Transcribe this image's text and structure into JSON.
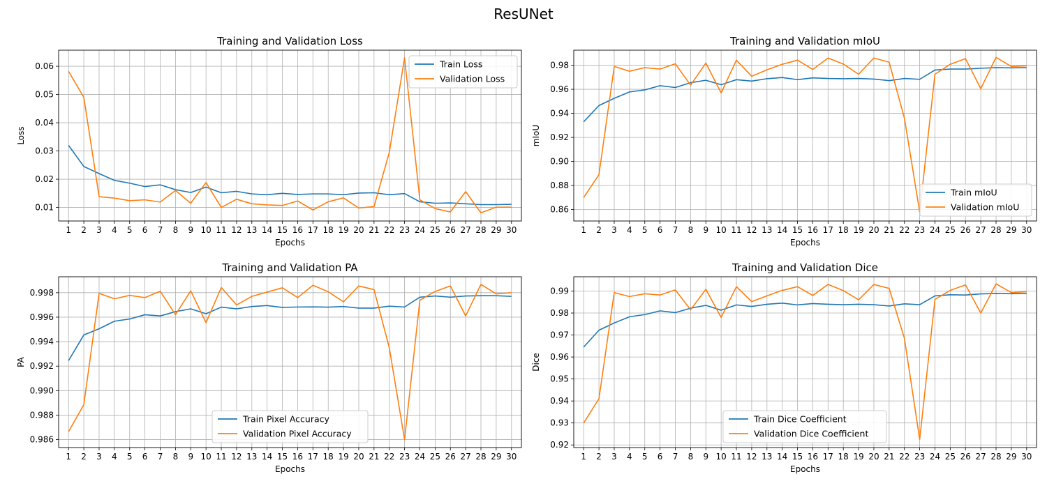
{
  "figure": {
    "title": "ResUNet"
  },
  "chart_data": [
    {
      "type": "line",
      "title": "Training and Validation Loss",
      "xlabel": "Epochs",
      "ylabel": "Loss",
      "x": [
        1,
        2,
        3,
        4,
        5,
        6,
        7,
        8,
        9,
        10,
        11,
        12,
        13,
        14,
        15,
        16,
        17,
        18,
        19,
        20,
        21,
        22,
        23,
        24,
        25,
        26,
        27,
        28,
        29,
        30
      ],
      "xlim": [
        0.35,
        30.65
      ],
      "ylim": [
        0.0052,
        0.0657
      ],
      "yticks": [
        0.01,
        0.02,
        0.03,
        0.04,
        0.05,
        0.06
      ],
      "ytick_labels": [
        "0.01",
        "0.02",
        "0.03",
        "0.04",
        "0.05",
        "0.06"
      ],
      "grid": true,
      "legend": "top-right",
      "series": [
        {
          "name": "Train Loss",
          "color": "#1f77b4",
          "values": [
            0.032,
            0.0245,
            0.022,
            0.0196,
            0.0186,
            0.0174,
            0.018,
            0.0163,
            0.0153,
            0.0172,
            0.0152,
            0.0157,
            0.0148,
            0.0145,
            0.015,
            0.0146,
            0.0148,
            0.0148,
            0.0145,
            0.0151,
            0.0152,
            0.0145,
            0.0149,
            0.012,
            0.0115,
            0.0116,
            0.0113,
            0.011,
            0.011,
            0.0111
          ]
        },
        {
          "name": "Validation Loss",
          "color": "#ff7f0e",
          "values": [
            0.0582,
            0.049,
            0.0138,
            0.0133,
            0.0124,
            0.0127,
            0.0119,
            0.016,
            0.0115,
            0.0188,
            0.01,
            0.0129,
            0.0113,
            0.0109,
            0.0107,
            0.0123,
            0.0091,
            0.012,
            0.0134,
            0.0098,
            0.0103,
            0.0295,
            0.063,
            0.0127,
            0.0096,
            0.0084,
            0.0156,
            0.0081,
            0.0101,
            0.0101
          ]
        }
      ]
    },
    {
      "type": "line",
      "title": "Training and Validation mIoU",
      "xlabel": "Epochs",
      "ylabel": "mIoU",
      "x": [
        1,
        2,
        3,
        4,
        5,
        6,
        7,
        8,
        9,
        10,
        11,
        12,
        13,
        14,
        15,
        16,
        17,
        18,
        19,
        20,
        21,
        22,
        23,
        24,
        25,
        26,
        27,
        28,
        29,
        30
      ],
      "xlim": [
        0.35,
        30.65
      ],
      "ylim": [
        0.8505,
        0.9925
      ],
      "yticks": [
        0.86,
        0.88,
        0.9,
        0.92,
        0.94,
        0.96,
        0.98
      ],
      "ytick_labels": [
        "0.86",
        "0.88",
        "0.90",
        "0.92",
        "0.94",
        "0.96",
        "0.98"
      ],
      "grid": true,
      "legend": "bottom-right",
      "series": [
        {
          "name": "Train mIoU",
          "color": "#1f77b4",
          "values": [
            0.933,
            0.9465,
            0.9525,
            0.9578,
            0.9595,
            0.963,
            0.9615,
            0.9655,
            0.9675,
            0.9638,
            0.968,
            0.9668,
            0.9688,
            0.9698,
            0.968,
            0.9695,
            0.969,
            0.9688,
            0.969,
            0.9685,
            0.9672,
            0.969,
            0.9683,
            0.976,
            0.9768,
            0.9768,
            0.9775,
            0.978,
            0.9778,
            0.978
          ]
        },
        {
          "name": "Validation mIoU",
          "color": "#ff7f0e",
          "values": [
            0.87,
            0.889,
            0.979,
            0.975,
            0.978,
            0.9768,
            0.9812,
            0.9635,
            0.9818,
            0.957,
            0.9842,
            0.9708,
            0.9762,
            0.9808,
            0.9842,
            0.9765,
            0.986,
            0.981,
            0.9725,
            0.986,
            0.9825,
            0.936,
            0.858,
            0.9725,
            0.9808,
            0.9855,
            0.9605,
            0.9865,
            0.979,
            0.9795
          ]
        }
      ]
    },
    {
      "type": "line",
      "title": "Training and Validation PA",
      "xlabel": "Epochs",
      "ylabel": "PA",
      "x": [
        1,
        2,
        3,
        4,
        5,
        6,
        7,
        8,
        9,
        10,
        11,
        12,
        13,
        14,
        15,
        16,
        17,
        18,
        19,
        20,
        21,
        22,
        23,
        24,
        25,
        26,
        27,
        28,
        29,
        30
      ],
      "xlim": [
        0.35,
        30.65
      ],
      "ylim": [
        0.98535,
        0.9993
      ],
      "yticks": [
        0.986,
        0.988,
        0.99,
        0.992,
        0.994,
        0.996,
        0.998
      ],
      "ytick_labels": [
        "0.986",
        "0.988",
        "0.990",
        "0.992",
        "0.994",
        "0.996",
        "0.998"
      ],
      "grid": true,
      "legend": "bottom-center",
      "series": [
        {
          "name": "Train Pixel Accuracy",
          "color": "#1f77b4",
          "values": [
            0.99245,
            0.99455,
            0.99505,
            0.99567,
            0.99585,
            0.9962,
            0.9961,
            0.99645,
            0.99668,
            0.99628,
            0.99682,
            0.99668,
            0.99687,
            0.99695,
            0.9968,
            0.99683,
            0.99684,
            0.99682,
            0.99687,
            0.99674,
            0.99674,
            0.9969,
            0.99683,
            0.99763,
            0.99773,
            0.99763,
            0.99773,
            0.99775,
            0.99775,
            0.9977
          ]
        },
        {
          "name": "Validation Pixel Accuracy",
          "color": "#ff7f0e",
          "values": [
            0.98665,
            0.98885,
            0.99795,
            0.9975,
            0.99778,
            0.9976,
            0.99812,
            0.9962,
            0.99815,
            0.99555,
            0.99842,
            0.997,
            0.9977,
            0.99805,
            0.9984,
            0.9976,
            0.9986,
            0.99808,
            0.99725,
            0.99855,
            0.99825,
            0.9935,
            0.986,
            0.99738,
            0.9981,
            0.99855,
            0.9961,
            0.99868,
            0.9979,
            0.998
          ]
        }
      ]
    },
    {
      "type": "line",
      "title": "Training and Validation Dice",
      "xlabel": "Epochs",
      "ylabel": "Dice",
      "x": [
        1,
        2,
        3,
        4,
        5,
        6,
        7,
        8,
        9,
        10,
        11,
        12,
        13,
        14,
        15,
        16,
        17,
        18,
        19,
        20,
        21,
        22,
        23,
        24,
        25,
        26,
        27,
        28,
        29,
        30
      ],
      "xlim": [
        0.35,
        30.65
      ],
      "ylim": [
        0.9188,
        0.9965
      ],
      "yticks": [
        0.92,
        0.93,
        0.94,
        0.95,
        0.96,
        0.97,
        0.98,
        0.99
      ],
      "ytick_labels": [
        "0.92",
        "0.93",
        "0.94",
        "0.95",
        "0.96",
        "0.97",
        "0.98",
        "0.99"
      ],
      "grid": true,
      "legend": "bottom-center",
      "series": [
        {
          "name": "Train Dice Coefficient",
          "color": "#1f77b4",
          "values": [
            0.9645,
            0.9722,
            0.9755,
            0.9783,
            0.9793,
            0.981,
            0.9802,
            0.9822,
            0.9835,
            0.9813,
            0.9837,
            0.983,
            0.984,
            0.9845,
            0.9837,
            0.9843,
            0.984,
            0.9838,
            0.984,
            0.9838,
            0.9832,
            0.9842,
            0.9838,
            0.9878,
            0.9883,
            0.9882,
            0.9887,
            0.9889,
            0.9888,
            0.9889
          ]
        },
        {
          "name": "Validation Dice Coefficient",
          "color": "#ff7f0e",
          "values": [
            0.93,
            0.941,
            0.9893,
            0.9875,
            0.9888,
            0.9882,
            0.9905,
            0.9815,
            0.9908,
            0.978,
            0.992,
            0.9852,
            0.9878,
            0.9903,
            0.992,
            0.988,
            0.993,
            0.9902,
            0.986,
            0.993,
            0.9912,
            0.9685,
            0.9225,
            0.9862,
            0.9903,
            0.9928,
            0.98,
            0.9933,
            0.9893,
            0.9897
          ]
        }
      ]
    }
  ]
}
